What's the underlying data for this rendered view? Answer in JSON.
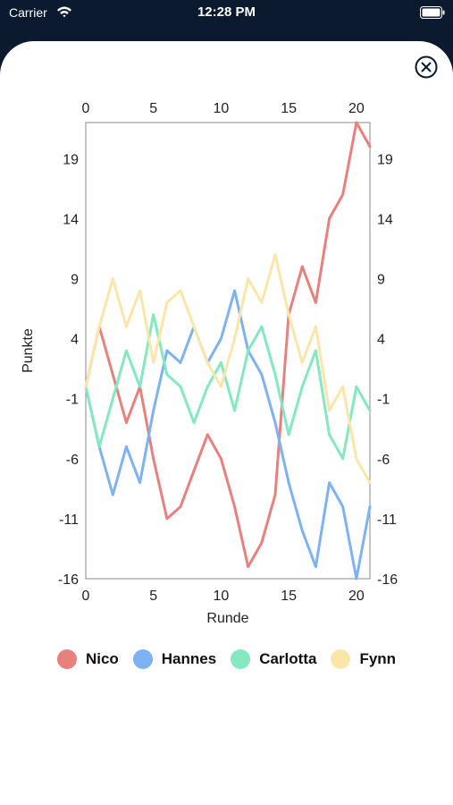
{
  "status_bar": {
    "carrier": "Carrier",
    "time": "12:28 PM"
  },
  "icons": {
    "wifi": "wifi-icon",
    "battery": "battery-icon",
    "close": "close-icon"
  },
  "colors": {
    "nico": "#e8817e",
    "hannes": "#7eb2f3",
    "carlotta": "#84e8c1",
    "fynn": "#fbe6a9",
    "axis": "#888888",
    "navy": "#0b1a2e"
  },
  "chart_data": {
    "type": "line",
    "xlabel": "Runde",
    "ylabel": "Punkte",
    "xlim": [
      0,
      21
    ],
    "ylim": [
      -16,
      22
    ],
    "x_ticks": [
      0,
      5,
      10,
      15,
      20
    ],
    "y_ticks": [
      -16,
      -11,
      -6,
      -1,
      4,
      9,
      14,
      19
    ],
    "grid": false,
    "legend_position": "bottom",
    "x": [
      0,
      1,
      2,
      3,
      4,
      5,
      6,
      7,
      8,
      9,
      10,
      11,
      12,
      13,
      14,
      15,
      16,
      17,
      18,
      19,
      20,
      21
    ],
    "series": [
      {
        "name": "Nico",
        "color": "#e8817e",
        "values": [
          0,
          5,
          1,
          -3,
          0,
          -6,
          -11,
          -10,
          -7,
          -4,
          -6,
          -10,
          -15,
          -13,
          -9,
          6,
          10,
          7,
          14,
          16,
          22,
          20
        ]
      },
      {
        "name": "Hannes",
        "color": "#7eb2f3",
        "values": [
          0,
          -5,
          -9,
          -5,
          -8,
          -2,
          3,
          2,
          5,
          2,
          4,
          8,
          3,
          1,
          -3,
          -8,
          -12,
          -15,
          -8,
          -10,
          -16,
          -10
        ]
      },
      {
        "name": "Carlotta",
        "color": "#84e8c1",
        "values": [
          0,
          -5,
          -1,
          3,
          0,
          6,
          1,
          0,
          -3,
          0,
          2,
          -2,
          3,
          5,
          1,
          -4,
          0,
          3,
          -4,
          -6,
          0,
          -2
        ]
      },
      {
        "name": "Fynn",
        "color": "#fbe6a9",
        "values": [
          0,
          5,
          9,
          5,
          8,
          2,
          7,
          8,
          5,
          2,
          0,
          4,
          9,
          7,
          11,
          6,
          2,
          5,
          -2,
          0,
          -6,
          -8
        ]
      }
    ]
  }
}
